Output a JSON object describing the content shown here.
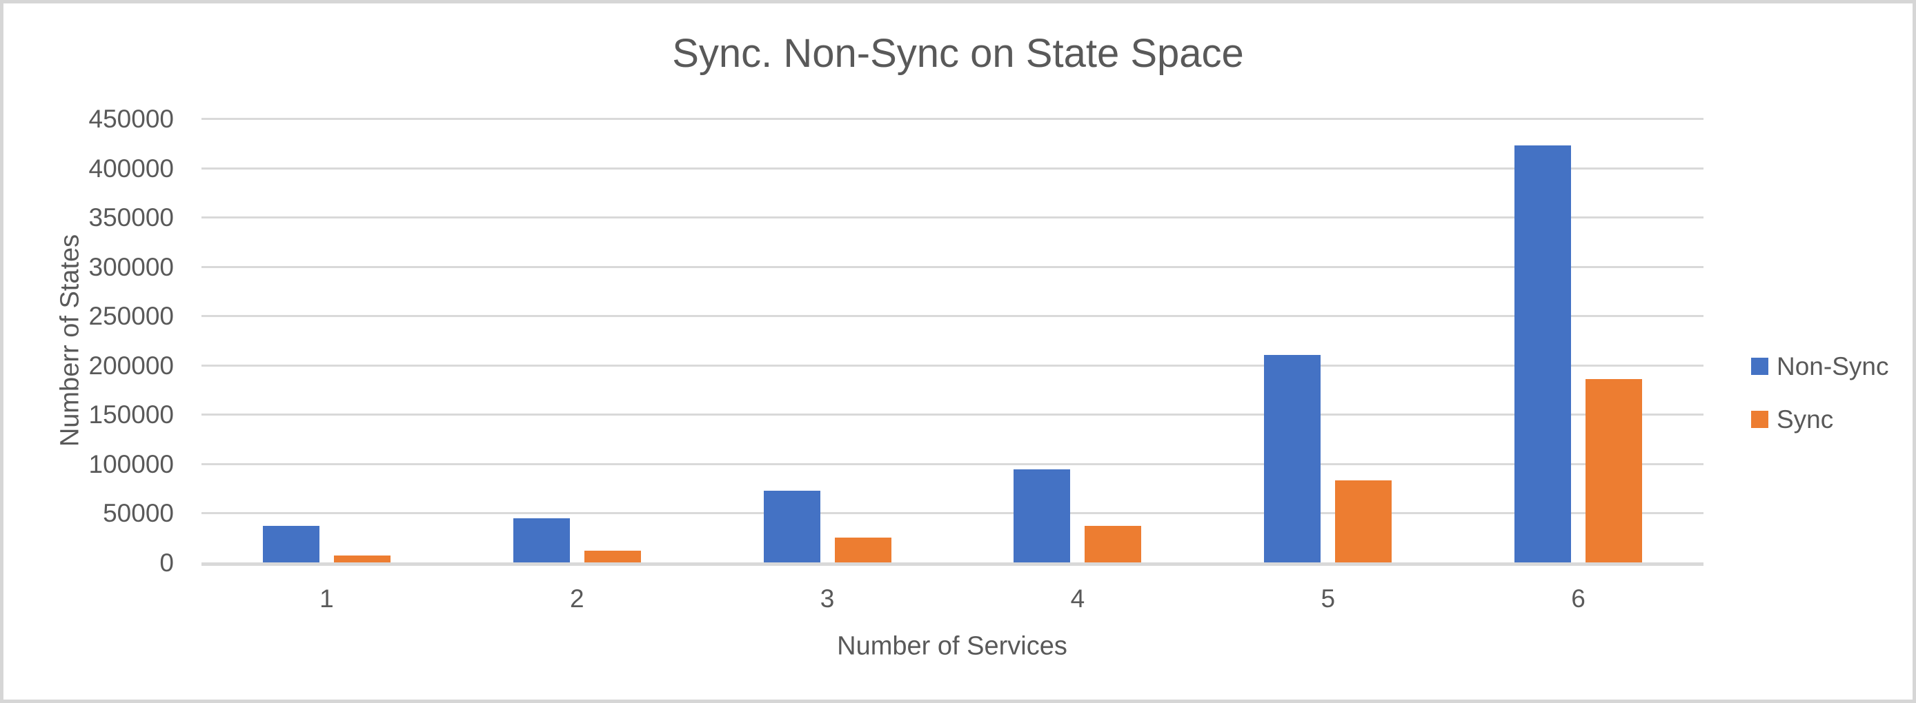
{
  "chart_data": {
    "type": "bar",
    "title": "Sync. Non-Sync on State Space",
    "xlabel": "Number of Services",
    "ylabel": "Numberr of States",
    "categories": [
      "1",
      "2",
      "3",
      "4",
      "5",
      "6"
    ],
    "series": [
      {
        "name": "Non-Sync",
        "color": "#4472C4",
        "values": [
          37000,
          45000,
          73000,
          94000,
          210000,
          423000
        ]
      },
      {
        "name": "Sync",
        "color": "#ED7D31",
        "values": [
          7000,
          12000,
          25000,
          37000,
          83000,
          186000
        ]
      }
    ],
    "ylim": [
      0,
      450000
    ],
    "ytick_step": 50000,
    "yticks": [
      0,
      50000,
      100000,
      150000,
      200000,
      250000,
      300000,
      350000,
      400000,
      450000
    ],
    "grid": true,
    "legend_position": "right",
    "colors": {
      "text": "#595959",
      "gridline": "#D9D9D9",
      "axis_line": "#D9D9D9",
      "series_non_sync": "#4472C4",
      "series_sync": "#ED7D31",
      "frame_border": "#D6D6D6",
      "background": "#FFFFFF"
    }
  }
}
